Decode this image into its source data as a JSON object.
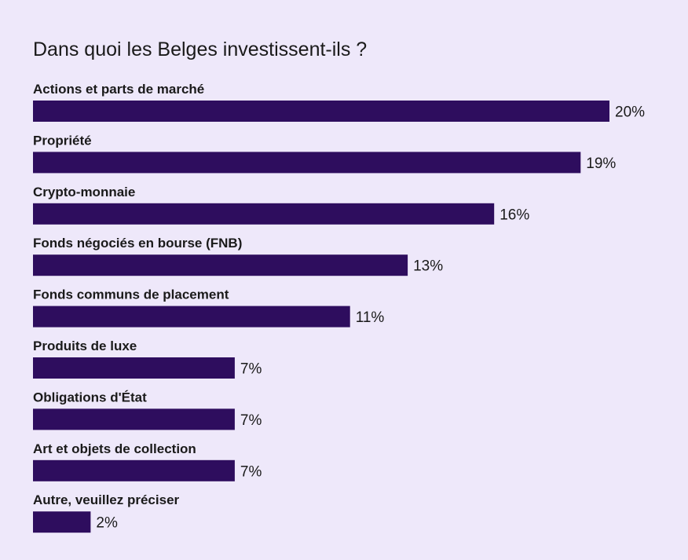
{
  "chart_data": {
    "type": "bar",
    "orientation": "horizontal",
    "title": "Dans quoi les Belges investissent-ils ?",
    "categories": [
      "Actions et parts de marché",
      "Propriété",
      "Crypto-monnaie",
      "Fonds négociés en bourse (FNB)",
      "Fonds communs de placement",
      "Produits de luxe",
      "Obligations d'État",
      "Art et objets de collection",
      "Autre, veuillez préciser"
    ],
    "values": [
      20,
      19,
      16,
      13,
      11,
      7,
      7,
      7,
      2
    ],
    "value_labels": [
      "20%",
      "19%",
      "16%",
      "13%",
      "11%",
      "7%",
      "7%",
      "7%",
      "2%"
    ],
    "unit": "%",
    "xlim": [
      0,
      20
    ],
    "grid": false,
    "legend": "none",
    "bar_color": "#2e0d5e",
    "background_color": "#eee8fa"
  }
}
